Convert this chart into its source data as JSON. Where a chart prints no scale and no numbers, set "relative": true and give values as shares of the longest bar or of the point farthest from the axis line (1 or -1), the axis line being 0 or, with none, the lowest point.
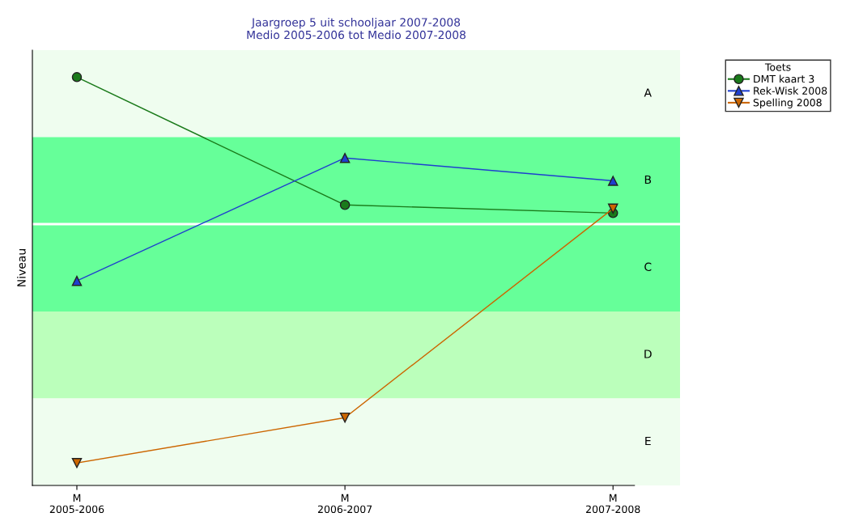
{
  "chart_data": {
    "type": "line",
    "title": "Jaargroep 5 uit schooljaar 2007-2008\nMedio 2005-2006 tot Medio 2007-2008",
    "ylabel": "Niveau",
    "legend_title": "Toets",
    "relative": true,
    "categories": [
      "M\n2005-2006",
      "M\n2006-2007",
      "M\n2007-2008"
    ],
    "series": [
      {
        "name": "DMT kaart 3",
        "color": "#1a7a1a",
        "marker": "circle",
        "values": [
          1,
          0.687,
          0.667
        ]
      },
      {
        "name": "Rek-Wisk 2008",
        "color": "#1f3fcf",
        "marker": "triangle",
        "values": [
          0.501,
          0.802,
          0.746
        ]
      },
      {
        "name": "Spelling 2008",
        "color": "#cc6600",
        "marker": "triangle_down",
        "values": [
          0.055,
          0.166,
          0.678
        ]
      }
    ],
    "bands": [
      {
        "axis": "y",
        "from": 0.853,
        "to": 1.066,
        "label": "A",
        "color": "#effdef"
      },
      {
        "axis": "y",
        "from": 0.64,
        "to": 0.853,
        "label": "B",
        "color": "#66ff99"
      },
      {
        "axis": "y",
        "from": 0.426,
        "to": 0.64,
        "label": "C",
        "color": "#66ff99"
      },
      {
        "axis": "y",
        "from": 0.213,
        "to": 0.426,
        "label": "D",
        "color": "#bbffbb"
      },
      {
        "axis": "y",
        "from": 0,
        "to": 0.213,
        "label": "E",
        "color": "#effdef"
      }
    ],
    "ref_lines": [
      {
        "axis": "y",
        "value": 0.64,
        "color": "#ffffff",
        "line_style": "solid"
      }
    ],
    "grid": false,
    "legend": "top right"
  }
}
